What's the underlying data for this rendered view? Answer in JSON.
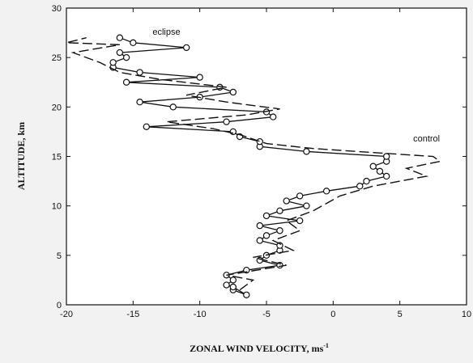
{
  "chart_data": {
    "type": "line",
    "xlabel": "ZONAL WIND VELOCITY, ms",
    "xlabel_superscript": "-1",
    "ylabel": "ALTITUDE, km",
    "xlim": [
      -20,
      10
    ],
    "ylim": [
      0,
      30
    ],
    "xticks": [
      -20,
      -15,
      -10,
      -5,
      0,
      5,
      10
    ],
    "yticks": [
      0,
      5,
      10,
      15,
      20,
      25,
      30
    ],
    "grid": false,
    "annotations": [
      {
        "text": "eclipse",
        "x": -12.5,
        "y": 27.3
      },
      {
        "text": "control",
        "x": 7.0,
        "y": 16.5
      }
    ],
    "series": [
      {
        "style": "solid-circles",
        "points": [
          [
            -7.5,
            1.5
          ],
          [
            -6.5,
            1.0
          ],
          [
            -7.5,
            1.8
          ],
          [
            -8.0,
            2.0
          ],
          [
            -7.5,
            2.5
          ],
          [
            -8.0,
            3.0
          ],
          [
            -6.5,
            3.5
          ],
          [
            -4.0,
            4.0
          ],
          [
            -5.5,
            4.5
          ],
          [
            -5.0,
            5.0
          ],
          [
            -4.0,
            5.5
          ],
          [
            -4.0,
            6.0
          ],
          [
            -5.5,
            6.5
          ],
          [
            -5.0,
            7.0
          ],
          [
            -4.0,
            7.5
          ],
          [
            -5.5,
            8.0
          ],
          [
            -2.5,
            8.5
          ],
          [
            -5.0,
            9.0
          ],
          [
            -4.0,
            9.5
          ],
          [
            -2.0,
            10.0
          ],
          [
            -3.5,
            10.5
          ],
          [
            -2.5,
            11.0
          ],
          [
            -0.5,
            11.5
          ],
          [
            2.0,
            12.0
          ],
          [
            2.5,
            12.5
          ],
          [
            4.0,
            13.0
          ],
          [
            3.5,
            13.5
          ],
          [
            3.0,
            14.0
          ],
          [
            4.0,
            14.5
          ],
          [
            4.0,
            15.0
          ],
          [
            -2.0,
            15.5
          ],
          [
            -5.5,
            16.0
          ],
          [
            -5.5,
            16.5
          ],
          [
            -7.0,
            17.0
          ],
          [
            -7.5,
            17.5
          ],
          [
            -14.0,
            18.0
          ],
          [
            -8.0,
            18.5
          ],
          [
            -4.5,
            19.0
          ],
          [
            -5.0,
            19.5
          ],
          [
            -12.0,
            20.0
          ],
          [
            -14.5,
            20.5
          ],
          [
            -10.0,
            21.0
          ],
          [
            -7.5,
            21.5
          ],
          [
            -8.5,
            22.0
          ],
          [
            -15.5,
            22.5
          ],
          [
            -10.0,
            23.0
          ],
          [
            -14.5,
            23.5
          ],
          [
            -16.5,
            24.0
          ],
          [
            -16.5,
            24.5
          ],
          [
            -15.5,
            25.0
          ],
          [
            -16.0,
            25.5
          ],
          [
            -11.0,
            26.0
          ],
          [
            -15.0,
            26.5
          ],
          [
            -16.0,
            27.0
          ]
        ]
      },
      {
        "style": "dashed",
        "points": [
          [
            -7.0,
            1.5
          ],
          [
            -6.0,
            2.5
          ],
          [
            -8.0,
            3.0
          ],
          [
            -3.5,
            4.0
          ],
          [
            -6.0,
            4.8
          ],
          [
            -3.0,
            5.5
          ],
          [
            -4.5,
            6.5
          ],
          [
            -2.5,
            7.5
          ],
          [
            -3.5,
            8.5
          ],
          [
            -1.5,
            9.5
          ],
          [
            0.5,
            11.0
          ],
          [
            3.0,
            12.0
          ],
          [
            7.0,
            13.0
          ],
          [
            5.5,
            13.8
          ],
          [
            8.0,
            14.5
          ],
          [
            7.5,
            15.0
          ],
          [
            4.0,
            15.3
          ],
          [
            -1.5,
            15.8
          ],
          [
            -5.0,
            16.3
          ],
          [
            -7.0,
            17.2
          ],
          [
            -9.0,
            17.8
          ],
          [
            -12.5,
            18.5
          ],
          [
            -6.5,
            19.2
          ],
          [
            -4.0,
            19.8
          ],
          [
            -8.0,
            20.5
          ],
          [
            -11.0,
            21.2
          ],
          [
            -8.0,
            22.0
          ],
          [
            -13.0,
            22.8
          ],
          [
            -16.0,
            23.5
          ],
          [
            -17.5,
            24.5
          ],
          [
            -19.5,
            25.5
          ],
          [
            -16.0,
            26.3
          ],
          [
            -20.0,
            26.5
          ],
          [
            -18.5,
            27.0
          ]
        ]
      }
    ]
  }
}
